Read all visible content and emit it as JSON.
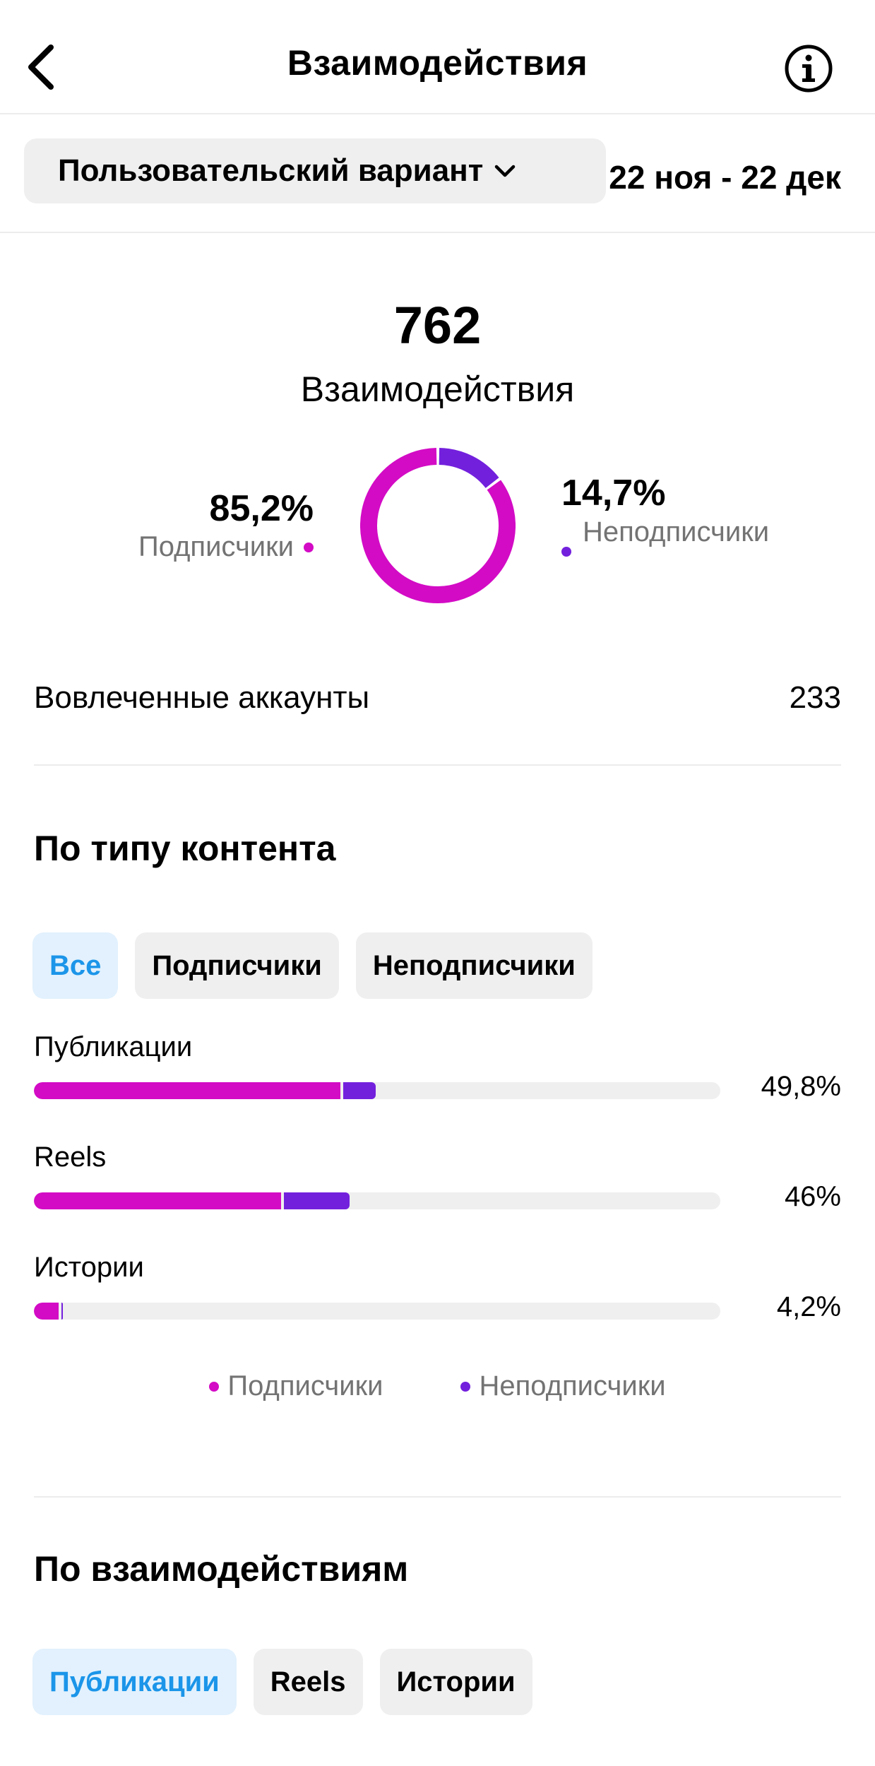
{
  "header": {
    "title": "Взаимодействия"
  },
  "filter": {
    "dropdown_label": "Пользовательский вариант",
    "date_range": "22 ноя - 22 дек"
  },
  "summary": {
    "total_value": "762",
    "total_label": "Взаимодействия",
    "followers_pct": "85,2%",
    "followers_label": "Подписчики",
    "non_followers_pct": "14,7%",
    "non_followers_label": "Неподписчики"
  },
  "engaged": {
    "label": "Вовлеченные аккаунты",
    "value": "233"
  },
  "content_type": {
    "title": "По типу контента",
    "chips": [
      "Все",
      "Подписчики",
      "Неподписчики"
    ],
    "rows": [
      {
        "label": "Публикации",
        "percent": "49,8%"
      },
      {
        "label": "Reels",
        "percent": "46%"
      },
      {
        "label": "Истории",
        "percent": "4,2%"
      }
    ],
    "legend": {
      "followers": "Подписчики",
      "non_followers": "Неподписчики"
    }
  },
  "by_interactions": {
    "title": "По взаимодействиям",
    "chips": [
      "Публикации",
      "Reels",
      "Истории"
    ]
  },
  "colors": {
    "followers": "#d30bc5",
    "non_followers": "#7320dd",
    "track": "#efefef",
    "accent": "#1b95e9"
  },
  "chart_data": [
    {
      "type": "pie",
      "categories": [
        "Подписчики",
        "Неподписчики"
      ],
      "values": [
        85.2,
        14.7
      ]
    },
    {
      "type": "bar",
      "categories": [
        "Публикации",
        "Reels",
        "Истории"
      ],
      "series": [
        {
          "name": "Подписчики",
          "values": [
            44.6,
            36.0,
            3.6
          ]
        },
        {
          "name": "Неподписчики",
          "values": [
            5.2,
            10.0,
            0.6
          ]
        }
      ],
      "labels": [
        "49,8%",
        "46%",
        "4,2%"
      ]
    }
  ]
}
